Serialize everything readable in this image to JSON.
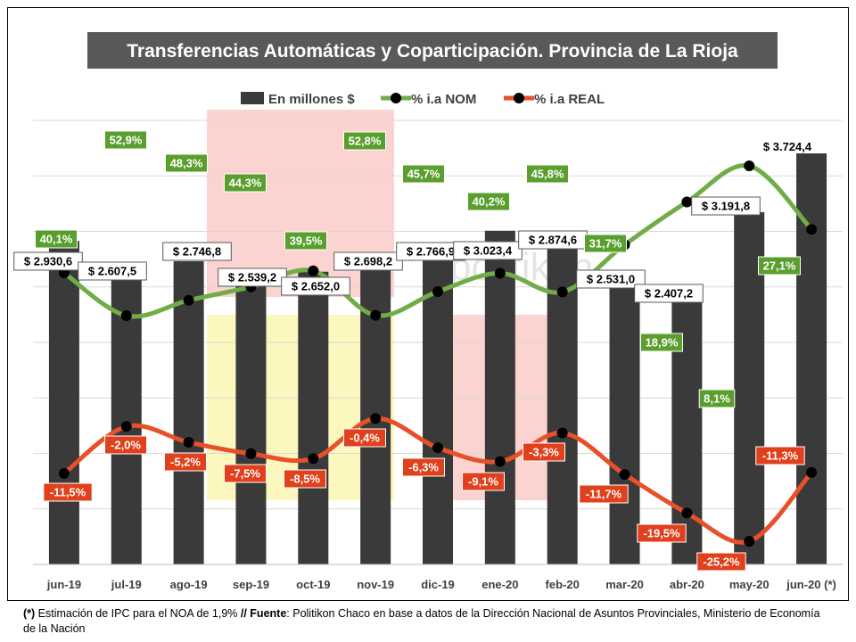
{
  "chart_data": {
    "type": "bar",
    "title": "Transferencias Automáticas y Coparticipación. Provincia de La Rioja",
    "categories": [
      "jun-19",
      "jul-19",
      "ago-19",
      "sep-19",
      "oct-19",
      "nov-19",
      "dic-19",
      "ene-20",
      "feb-20",
      "mar-20",
      "abr-20",
      "may-20",
      "jun-20 (*)"
    ],
    "series": [
      {
        "name": "En millones $",
        "kind": "bar",
        "color": "#3a3a3a",
        "values": [
          2930.6,
          2607.5,
          2746.8,
          2539.2,
          2652.0,
          2698.2,
          2766.9,
          3023.4,
          2874.6,
          2531.0,
          2407.2,
          3191.8,
          3724.4
        ],
        "labels": [
          "$ 2.930,6",
          "$ 2.607,5",
          "$ 2.746,8",
          "$ 2.539,2",
          "$ 2.652,0",
          "$ 2.698,2",
          "$ 2.766,9",
          "$ 3.023,4",
          "$ 2.874,6",
          "$ 2.531,0",
          "$ 2.407,2",
          "$ 3.191,8",
          "$ 3.724,4"
        ]
      },
      {
        "name": "% i.a NOM",
        "kind": "line",
        "color": "#70ad47",
        "values": [
          40.1,
          52.9,
          48.3,
          44.3,
          39.5,
          52.8,
          45.7,
          40.2,
          45.8,
          31.7,
          18.9,
          8.1,
          27.1
        ],
        "labels": [
          "40,1%",
          "52,9%",
          "48,3%",
          "44,3%",
          "39,5%",
          "52,8%",
          "45,7%",
          "40,2%",
          "45,8%",
          "31,7%",
          "18,9%",
          "8,1%",
          "27,1%"
        ]
      },
      {
        "name": "% i.a REAL",
        "kind": "line",
        "color": "#e8502a",
        "values": [
          -11.5,
          -2.0,
          -5.2,
          -7.5,
          -8.5,
          -0.4,
          -6.3,
          -9.1,
          -3.3,
          -11.7,
          -19.5,
          -25.2,
          -11.3
        ],
        "labels": [
          "-11,5%",
          "-2,0%",
          "-5,2%",
          "-7,5%",
          "-8,5%",
          "-0,4%",
          "-6,3%",
          "-9,1%",
          "-3,3%",
          "-11,7%",
          "-19,5%",
          "-25,2%",
          "-11,3%"
        ]
      }
    ],
    "legend_position": "top",
    "grid": true,
    "highlight_colors": [
      "#f9c4c0",
      "#fbf6b4"
    ]
  },
  "footnote": {
    "mark": "(*)",
    "text1": " Estimación de IPC para el NOA de 1,9% ",
    "sep": "// Fuente",
    "text2": ": Politikon Chaco en base a datos de la Dirección Nacional de Asuntos Provinciales, Ministerio de Economía de la Nación"
  },
  "watermark": "politikon"
}
